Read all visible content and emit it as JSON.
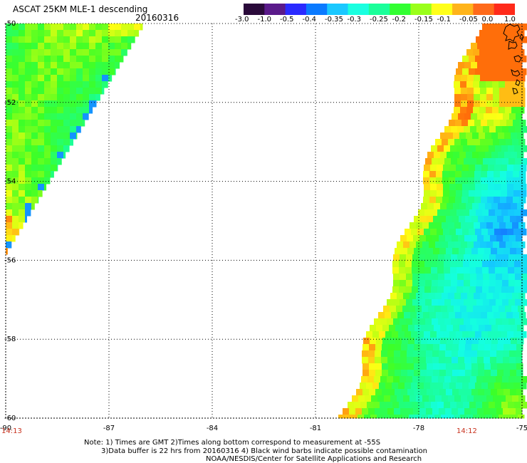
{
  "header": {
    "title": "ASCAT 25KM MLE-1 descending",
    "date": "20160316"
  },
  "colorbar": {
    "labels": [
      "-3.0",
      "-1.0",
      "-0.5",
      "-0.4",
      "-0.35",
      "-0.3",
      "-0.25",
      "-0.2",
      "-0.15",
      "-0.1",
      "-0.05",
      "0.0",
      "1.0"
    ],
    "colors": [
      "#2a0a3a",
      "#5a1a8a",
      "#2a2aff",
      "#0a7aff",
      "#1ac8ff",
      "#1affe0",
      "#1aff9a",
      "#32ff32",
      "#9aff1a",
      "#ffff1a",
      "#ffb41a",
      "#ff6a1a",
      "#ff2a1a"
    ]
  },
  "map": {
    "lon_labels": [
      "-90",
      "-87",
      "-84",
      "-81",
      "-78",
      "-75"
    ],
    "lat_labels": [
      "-50",
      "-52",
      "-54",
      "-56",
      "-58",
      "-60"
    ],
    "lon_range": [
      -90,
      -75
    ],
    "lat_range": [
      -60,
      -50
    ]
  },
  "times": {
    "left": "14:13",
    "right": "14:12"
  },
  "notes": {
    "line1": "Note: 1) Times are GMT 2)Times along bottom correspond to measurement at -55S",
    "line2": "3)Data buffer is 22 hrs from 20160316 4) Black wind barbs indicate possible contamination",
    "line3": "NOAA/NESDIS/Center for Satellite Applications and Research"
  }
}
